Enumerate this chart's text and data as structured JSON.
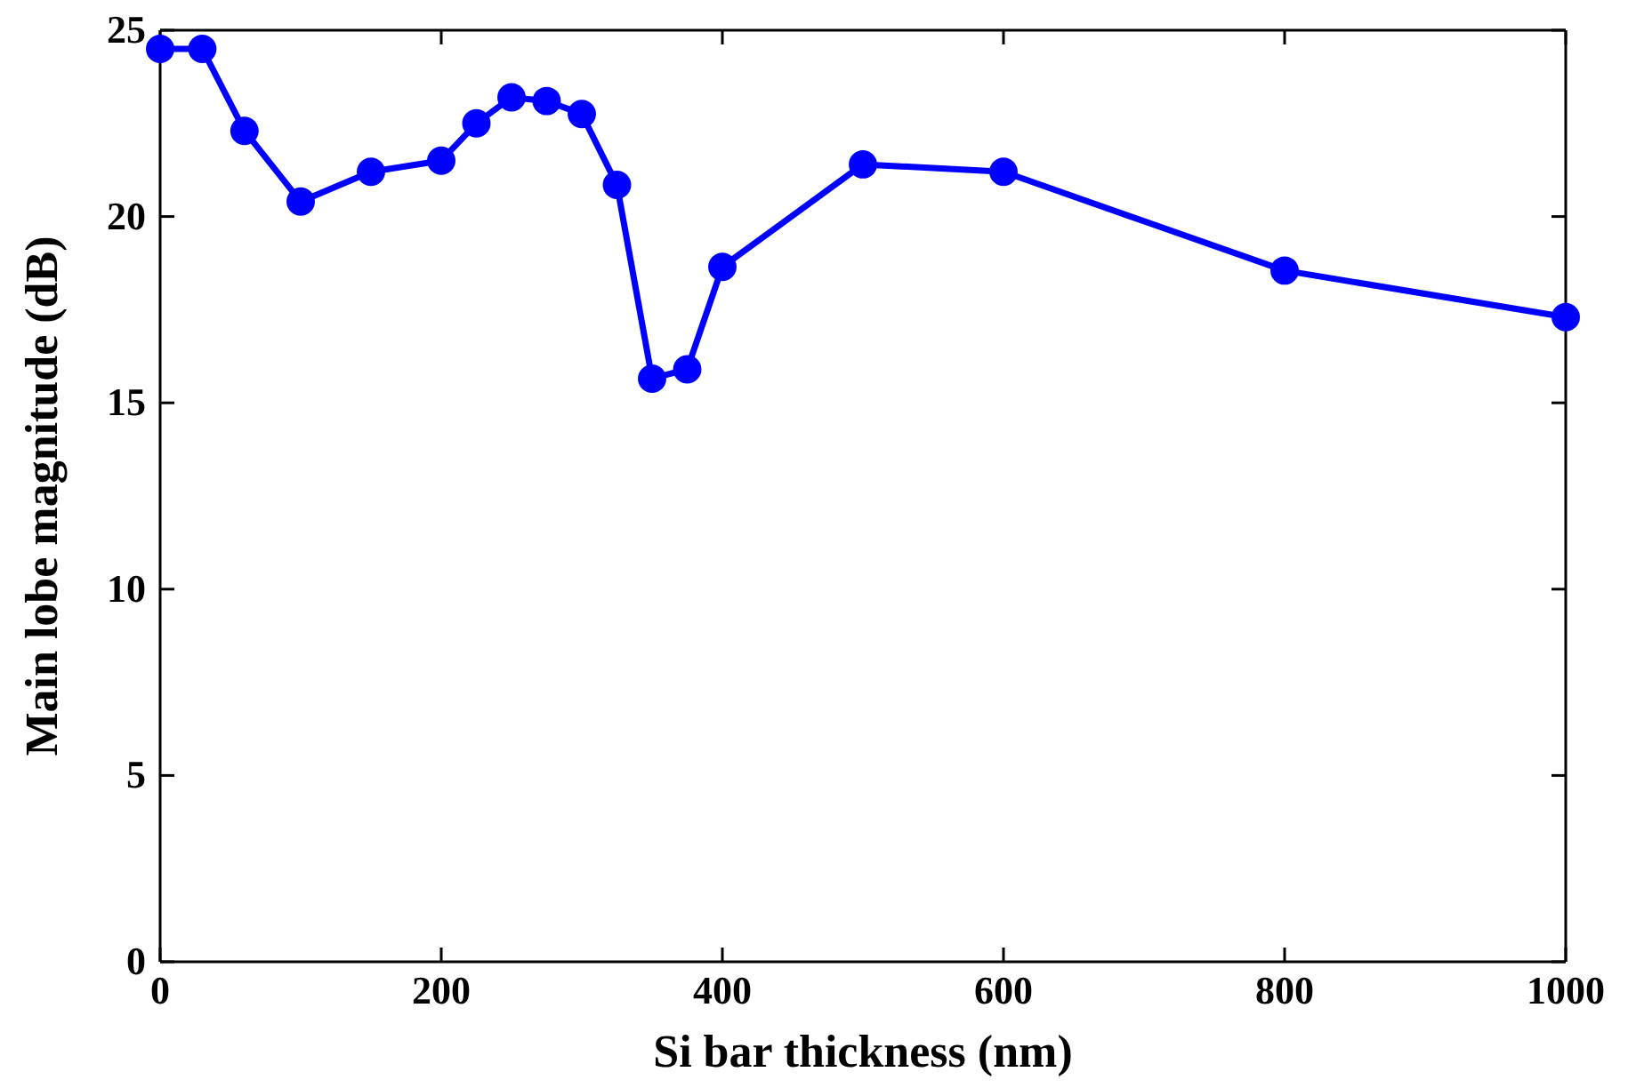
{
  "chart_data": {
    "type": "line",
    "xlabel": "Si bar thickness (nm)",
    "ylabel": "Main lobe magnitude (dB)",
    "x": [
      0,
      30,
      60,
      100,
      150,
      200,
      225,
      250,
      275,
      300,
      325,
      350,
      375,
      400,
      500,
      600,
      800,
      1000
    ],
    "series": [
      {
        "color": "#0000ff",
        "values": [
          24.5,
          24.5,
          22.3,
          20.4,
          21.2,
          21.5,
          22.5,
          23.2,
          23.1,
          22.75,
          20.85,
          15.65,
          15.9,
          18.65,
          21.4,
          21.2,
          18.55,
          17.3
        ]
      }
    ],
    "xlim": [
      0,
      1000
    ],
    "xticks": [
      0,
      200,
      400,
      600,
      800,
      1000
    ],
    "ylim": [
      0,
      25
    ],
    "yticks": [
      0,
      5,
      10,
      15,
      20,
      25
    ],
    "marker": "circle",
    "line_style": "solid"
  }
}
